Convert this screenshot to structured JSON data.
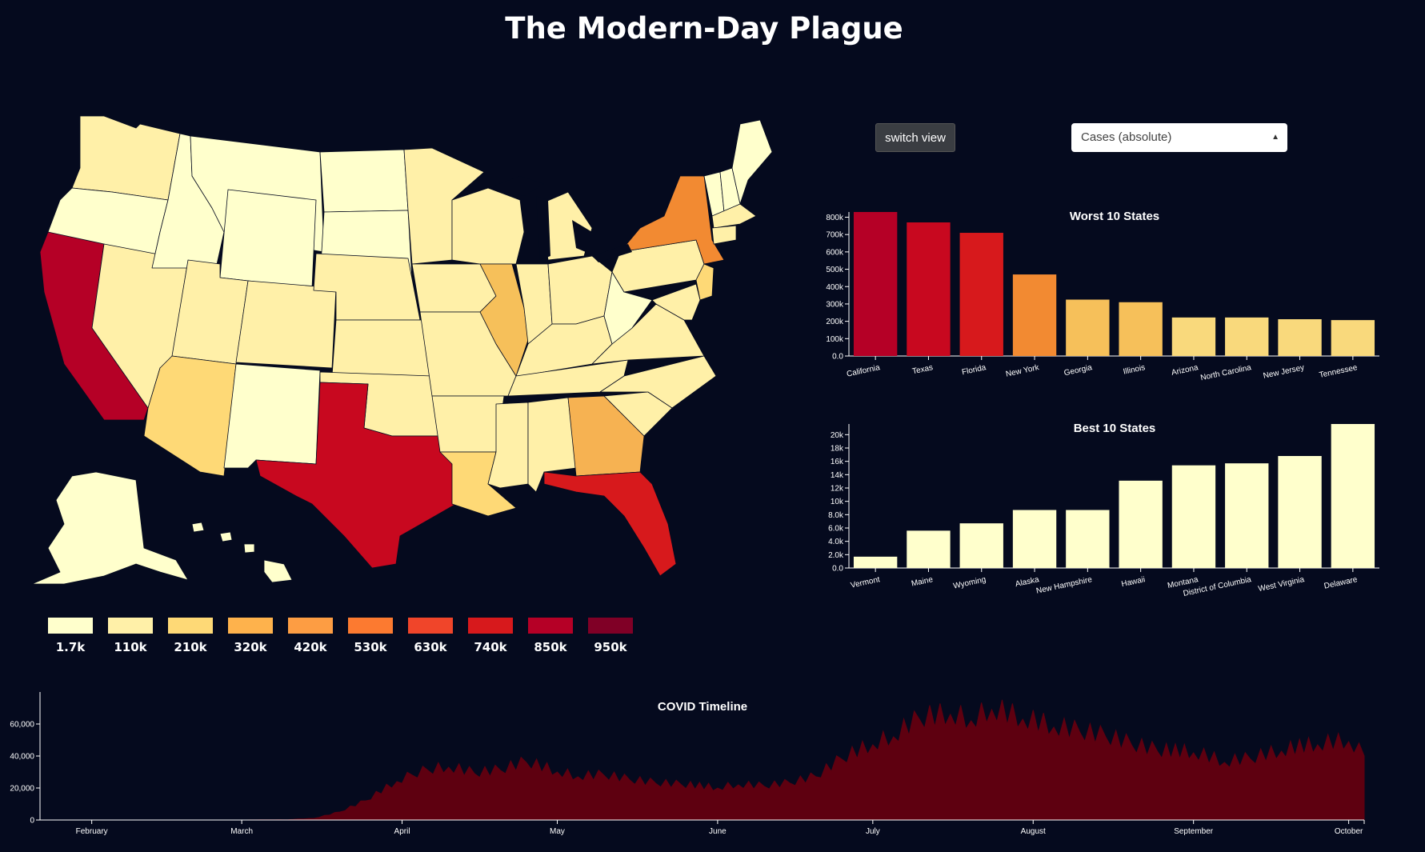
{
  "page": {
    "title": "The Modern-Day Plague"
  },
  "controls": {
    "switch_label": "switch view",
    "select_value": "Cases (absolute)"
  },
  "colors": {
    "background": "#050a1e",
    "timeline_fill": "#5e0010"
  },
  "legend": [
    {
      "label": "1.7k",
      "color": "#ffffcc"
    },
    {
      "label": "110k",
      "color": "#fff0a8"
    },
    {
      "label": "210k",
      "color": "#fed976"
    },
    {
      "label": "320k",
      "color": "#feb24c"
    },
    {
      "label": "420k",
      "color": "#fd9d43"
    },
    {
      "label": "530k",
      "color": "#fc7a30"
    },
    {
      "label": "630k",
      "color": "#f0452a"
    },
    {
      "label": "740k",
      "color": "#d7191c"
    },
    {
      "label": "850k",
      "color": "#b50026"
    },
    {
      "label": "950k",
      "color": "#800026"
    }
  ],
  "chart_data": [
    {
      "type": "bar",
      "title": "Worst 10 States",
      "categories": [
        "California",
        "Texas",
        "Florida",
        "New York",
        "Georgia",
        "Illinois",
        "Arizona",
        "North Carolina",
        "New Jersey",
        "Tennessee"
      ],
      "values": [
        830000,
        770000,
        710000,
        470000,
        325000,
        310000,
        222000,
        222000,
        212000,
        207000
      ],
      "colors": [
        "#b50026",
        "#c8081f",
        "#d7191c",
        "#f28a32",
        "#f6c05a",
        "#f6c05a",
        "#f9d97c",
        "#f9d97c",
        "#f9d97c",
        "#f9d97c"
      ],
      "yticks": [
        "0.0",
        "100k",
        "200k",
        "300k",
        "400k",
        "500k",
        "600k",
        "700k",
        "800k"
      ],
      "ylim": [
        0,
        830000
      ]
    },
    {
      "type": "bar",
      "title": "Best 10 States",
      "categories": [
        "Vermont",
        "Maine",
        "Wyoming",
        "Alaska",
        "New Hampshire",
        "Hawaii",
        "Montana",
        "District of Columbia",
        "West Virginia",
        "Delaware"
      ],
      "values": [
        1700,
        5600,
        6700,
        8700,
        8700,
        13100,
        15400,
        15700,
        16800,
        21600
      ],
      "colors": [
        "#ffffcc",
        "#ffffcc",
        "#ffffcc",
        "#ffffcc",
        "#ffffcc",
        "#ffffcc",
        "#ffffcc",
        "#ffffcc",
        "#ffffcc",
        "#ffffcc"
      ],
      "yticks": [
        "0.0",
        "2.0k",
        "4.0k",
        "6.0k",
        "8.0k",
        "10k",
        "12k",
        "14k",
        "16k",
        "18k",
        "20k"
      ],
      "ylim": [
        0,
        21600
      ]
    },
    {
      "type": "area",
      "title": "COVID Timeline",
      "x_ticks": [
        "February",
        "March",
        "April",
        "May",
        "June",
        "July",
        "August",
        "September",
        "October"
      ],
      "y_ticks": [
        "0",
        "20,000",
        "40,000",
        "60,000"
      ],
      "ylim": [
        0,
        75000
      ],
      "start_date": "2020-01-22",
      "end_date": "2020-10-04",
      "x": [
        "2020-01-22",
        "2020-03-01",
        "2020-03-10",
        "2020-03-15",
        "2020-03-20",
        "2020-03-25",
        "2020-03-31",
        "2020-04-03",
        "2020-04-06",
        "2020-04-10",
        "2020-04-15",
        "2020-04-20",
        "2020-04-25",
        "2020-05-01",
        "2020-05-05",
        "2020-05-10",
        "2020-05-15",
        "2020-05-20",
        "2020-05-25",
        "2020-06-01",
        "2020-06-05",
        "2020-06-10",
        "2020-06-15",
        "2020-06-20",
        "2020-06-25",
        "2020-07-01",
        "2020-07-05",
        "2020-07-10",
        "2020-07-16",
        "2020-07-20",
        "2020-07-24",
        "2020-07-30",
        "2020-08-05",
        "2020-08-10",
        "2020-08-15",
        "2020-08-20",
        "2020-08-25",
        "2020-09-01",
        "2020-09-07",
        "2020-09-12",
        "2020-09-18",
        "2020-09-25",
        "2020-10-01",
        "2020-10-04"
      ],
      "values": [
        0,
        0,
        200,
        1000,
        5000,
        12000,
        24000,
        28000,
        31000,
        33000,
        29000,
        31000,
        36000,
        30000,
        27000,
        28000,
        25000,
        23000,
        22000,
        20000,
        22000,
        21000,
        23000,
        27000,
        38000,
        47000,
        52000,
        63000,
        66000,
        62000,
        69000,
        63000,
        58000,
        55000,
        52000,
        47000,
        43000,
        42000,
        36000,
        38000,
        43000,
        47000,
        49000,
        40000
      ]
    }
  ]
}
